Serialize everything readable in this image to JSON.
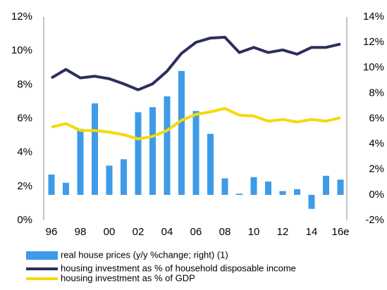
{
  "chart_data": {
    "type": "bar-line",
    "categories": [
      "96",
      null,
      "98",
      null,
      "00",
      null,
      "02",
      null,
      "04",
      null,
      "06",
      null,
      "08",
      null,
      "10",
      null,
      "12",
      null,
      "14",
      null,
      "16e"
    ],
    "ylim": [
      0,
      12
    ],
    "yticks": [
      {
        "value": 0,
        "label": "0%"
      },
      {
        "value": 2,
        "label": "2%"
      },
      {
        "value": 4,
        "label": "4%"
      },
      {
        "value": 6,
        "label": "6%"
      },
      {
        "value": 8,
        "label": "8%"
      },
      {
        "value": 10,
        "label": "10%"
      },
      {
        "value": 12,
        "label": "12%"
      }
    ],
    "y2lim": [
      -2,
      14
    ],
    "y2ticks": [
      {
        "value": -2,
        "label": "-2%"
      },
      {
        "value": 0,
        "label": "0%"
      },
      {
        "value": 2,
        "label": "2%"
      },
      {
        "value": 4,
        "label": "4%"
      },
      {
        "value": 6,
        "label": "6%"
      },
      {
        "value": 8,
        "label": "8%"
      },
      {
        "value": 10,
        "label": "10%"
      },
      {
        "value": 12,
        "label": "12%"
      },
      {
        "value": 14,
        "label": "14%"
      }
    ],
    "series": [
      {
        "name": "real house prices (y/y %change; right) (1)",
        "type": "bar",
        "axis": "y2",
        "color": "#3d9be9",
        "values": [
          1.6,
          0.95,
          5.2,
          7.2,
          2.3,
          2.8,
          6.5,
          6.9,
          7.75,
          9.75,
          6.6,
          4.8,
          1.3,
          0.1,
          1.4,
          1.05,
          0.3,
          0.45,
          -1.1,
          1.5,
          1.2
        ]
      },
      {
        "name": "housing investment as % of household disposable income",
        "type": "line",
        "color": "#2b2e5f",
        "values": [
          8.4,
          8.9,
          8.4,
          8.5,
          8.35,
          8.05,
          7.7,
          8.05,
          8.8,
          9.85,
          10.5,
          10.75,
          10.8,
          9.9,
          10.2,
          9.9,
          10.05,
          9.8,
          10.2,
          10.2,
          10.4
        ]
      },
      {
        "name": "housing investment as % of GDP",
        "type": "line",
        "color": "#f5d90a",
        "values": [
          5.5,
          5.7,
          5.3,
          5.3,
          5.2,
          5.05,
          4.8,
          4.95,
          5.3,
          5.9,
          6.25,
          6.4,
          6.6,
          6.2,
          6.15,
          5.85,
          5.95,
          5.8,
          5.95,
          5.85,
          6.05
        ]
      }
    ]
  }
}
